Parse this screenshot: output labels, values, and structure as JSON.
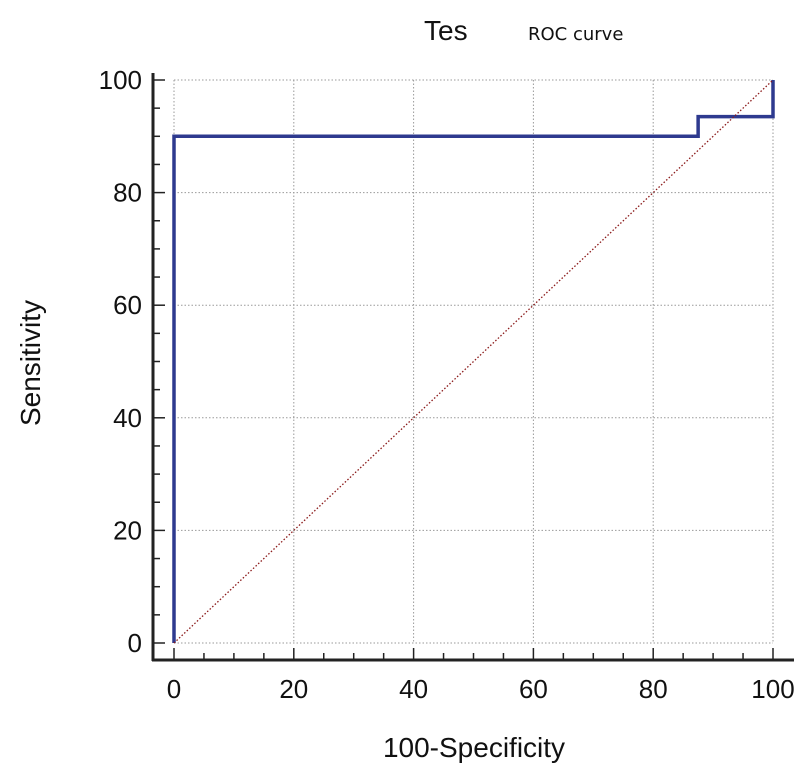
{
  "chart_data": {
    "type": "line",
    "title": "ROC curve",
    "title_partial_behind": "Tes",
    "xlabel": "100-Specificity",
    "ylabel": "Sensitivity",
    "xlim": [
      0,
      100
    ],
    "ylim": [
      0,
      100
    ],
    "xticks": [
      0,
      20,
      40,
      60,
      80,
      100
    ],
    "yticks": [
      0,
      20,
      40,
      60,
      80,
      100
    ],
    "xtick_labels": [
      "0",
      "20",
      "40",
      "60",
      "80",
      "100"
    ],
    "ytick_labels": [
      "0",
      "20",
      "40",
      "60",
      "80",
      "100"
    ],
    "grid": true,
    "legend": "none",
    "series": [
      {
        "style": "step",
        "color": "#2e3a8f",
        "x": [
          0,
          0,
          87.5,
          87.5,
          100,
          100
        ],
        "y": [
          0,
          90,
          90,
          93.5,
          93.5,
          100
        ]
      },
      {
        "style": "dotted-diagonal",
        "color": "#8b1a1a",
        "x": [
          0,
          100
        ],
        "y": [
          0,
          100
        ]
      }
    ]
  }
}
